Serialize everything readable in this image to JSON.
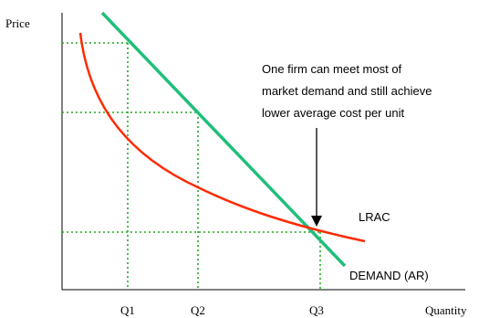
{
  "axes": {
    "y_label": "Price",
    "x_label": "Quantity"
  },
  "quantity_ticks": [
    "Q1",
    "Q2",
    "Q3"
  ],
  "curves": {
    "lrac": {
      "label": "LRAC",
      "color": "#ff2a00"
    },
    "demand": {
      "label": "DEMAND (AR)",
      "color": "#1fbf7a"
    }
  },
  "guide_line_color": "#22aa22",
  "annotation": {
    "lines": [
      "One firm can meet most of",
      "market demand and still achieve",
      "lower average cost per unit"
    ]
  }
}
